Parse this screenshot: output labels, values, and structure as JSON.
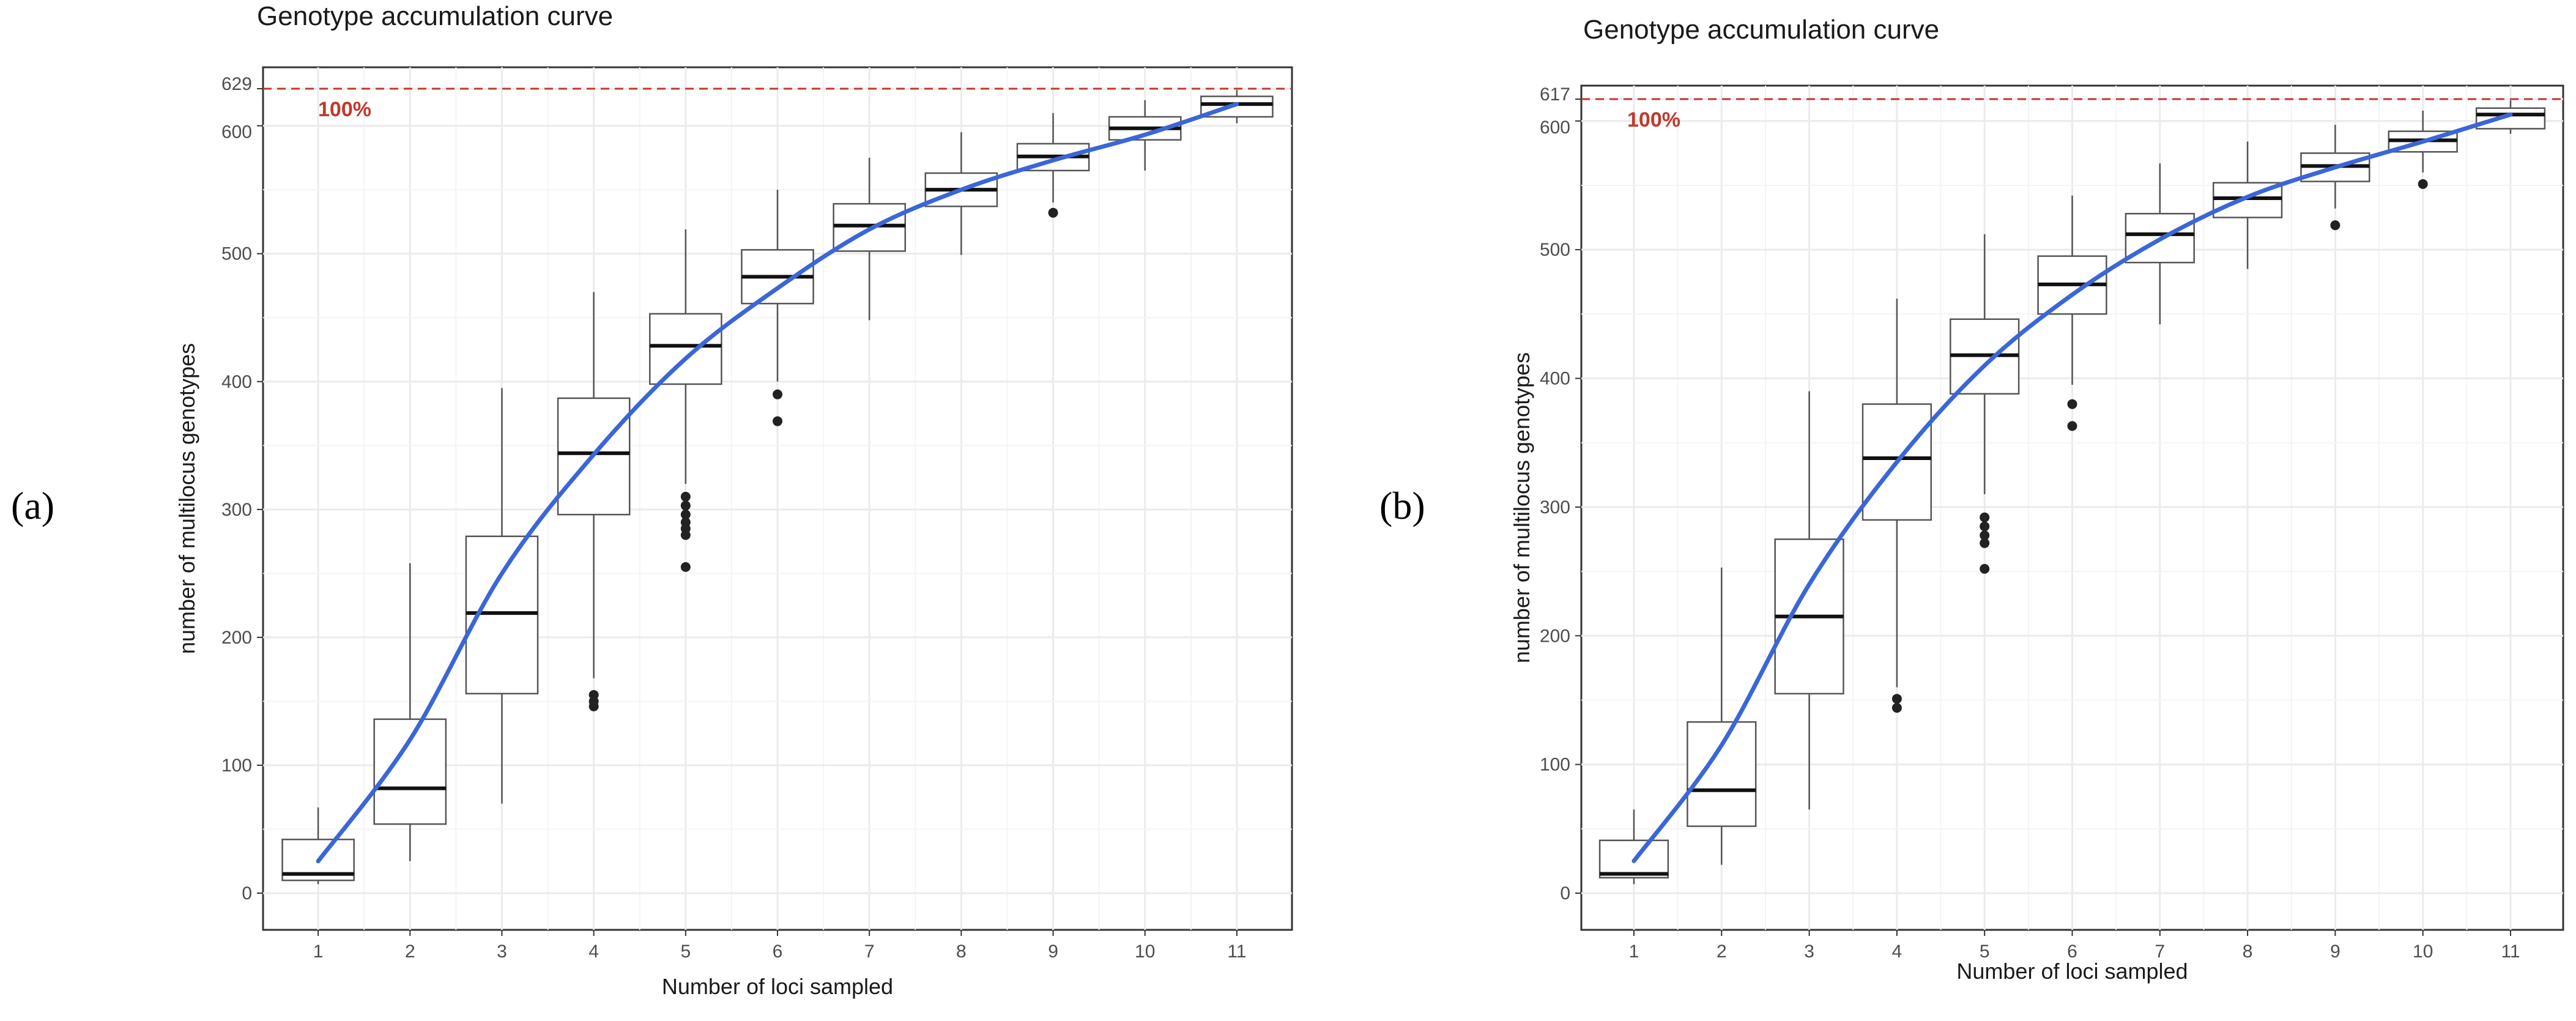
{
  "panels": [
    {
      "panel_label": "(a)",
      "chart_data": {
        "type": "boxplot",
        "title": "Genotype accumulation curve",
        "xlabel": "Number of loci sampled",
        "ylabel": "number of multilocus genotypes",
        "categories": [
          "1",
          "2",
          "3",
          "4",
          "5",
          "6",
          "7",
          "8",
          "9",
          "10",
          "11"
        ],
        "ylim": [
          0,
          629
        ],
        "yticks": [
          0,
          100,
          200,
          300,
          400,
          500,
          600,
          629
        ],
        "reference_line": {
          "value": 629,
          "label": "100%",
          "color": "#c0392b"
        },
        "boxes": [
          {
            "x": "1",
            "whisker_low": 7,
            "q1": 10,
            "median": 15,
            "q3": 42,
            "whisker_high": 67,
            "outliers": []
          },
          {
            "x": "2",
            "whisker_low": 25,
            "q1": 54,
            "median": 82,
            "q3": 136,
            "whisker_high": 258,
            "outliers": []
          },
          {
            "x": "3",
            "whisker_low": 70,
            "q1": 156,
            "median": 219,
            "q3": 279,
            "whisker_high": 395,
            "outliers": []
          },
          {
            "x": "4",
            "whisker_low": 168,
            "q1": 296,
            "median": 344,
            "q3": 387,
            "whisker_high": 470,
            "outliers": [
              146,
              150,
              155
            ]
          },
          {
            "x": "5",
            "whisker_low": 320,
            "q1": 398,
            "median": 428,
            "q3": 453,
            "whisker_high": 519,
            "outliers": [
              255,
              280,
              285,
              290,
              296,
              303,
              310
            ]
          },
          {
            "x": "6",
            "whisker_low": 400,
            "q1": 461,
            "median": 482,
            "q3": 503,
            "whisker_high": 550,
            "outliers": [
              369,
              390
            ]
          },
          {
            "x": "7",
            "whisker_low": 448,
            "q1": 502,
            "median": 522,
            "q3": 539,
            "whisker_high": 575,
            "outliers": []
          },
          {
            "x": "8",
            "whisker_low": 499,
            "q1": 537,
            "median": 550,
            "q3": 563,
            "whisker_high": 595,
            "outliers": []
          },
          {
            "x": "9",
            "whisker_low": 540,
            "q1": 565,
            "median": 576,
            "q3": 586,
            "whisker_high": 610,
            "outliers": [
              532
            ]
          },
          {
            "x": "10",
            "whisker_low": 565,
            "q1": 589,
            "median": 598,
            "q3": 607,
            "whisker_high": 620,
            "outliers": []
          },
          {
            "x": "11",
            "whisker_low": 602,
            "q1": 607,
            "median": 617,
            "q3": 623,
            "whisker_high": 628,
            "outliers": []
          }
        ],
        "trend_line": {
          "color": "#3a66d8",
          "x": [
            1,
            2,
            3,
            4,
            5,
            6,
            7,
            8,
            9,
            10,
            11
          ],
          "y": [
            25,
            120,
            250,
            343,
            418,
            473,
            519,
            550,
            573,
            593,
            617
          ]
        }
      }
    },
    {
      "panel_label": "(b)",
      "chart_data": {
        "type": "boxplot",
        "title": "Genotype accumulation curve",
        "xlabel": "Number of loci sampled",
        "ylabel": "number of multilocus genotypes",
        "categories": [
          "1",
          "2",
          "3",
          "4",
          "5",
          "6",
          "7",
          "8",
          "9",
          "10",
          "11"
        ],
        "ylim": [
          0,
          617
        ],
        "yticks": [
          0,
          100,
          200,
          300,
          400,
          500,
          600,
          617
        ],
        "reference_line": {
          "value": 617,
          "label": "100%",
          "color": "#c0392b"
        },
        "boxes": [
          {
            "x": "1",
            "whisker_low": 7,
            "q1": 12,
            "median": 15,
            "q3": 41,
            "whisker_high": 65,
            "outliers": []
          },
          {
            "x": "2",
            "whisker_low": 22,
            "q1": 52,
            "median": 80,
            "q3": 133,
            "whisker_high": 253,
            "outliers": []
          },
          {
            "x": "3",
            "whisker_low": 65,
            "q1": 155,
            "median": 215,
            "q3": 275,
            "whisker_high": 390,
            "outliers": []
          },
          {
            "x": "4",
            "whisker_low": 160,
            "q1": 290,
            "median": 338,
            "q3": 380,
            "whisker_high": 462,
            "outliers": [
              144,
              151
            ]
          },
          {
            "x": "5",
            "whisker_low": 310,
            "q1": 388,
            "median": 418,
            "q3": 446,
            "whisker_high": 512,
            "outliers": [
              252,
              272,
              278,
              285,
              292
            ]
          },
          {
            "x": "6",
            "whisker_low": 395,
            "q1": 450,
            "median": 473,
            "q3": 495,
            "whisker_high": 542,
            "outliers": [
              363,
              380
            ]
          },
          {
            "x": "7",
            "whisker_low": 442,
            "q1": 490,
            "median": 512,
            "q3": 528,
            "whisker_high": 567,
            "outliers": []
          },
          {
            "x": "8",
            "whisker_low": 485,
            "q1": 525,
            "median": 540,
            "q3": 552,
            "whisker_high": 584,
            "outliers": []
          },
          {
            "x": "9",
            "whisker_low": 532,
            "q1": 553,
            "median": 565,
            "q3": 575,
            "whisker_high": 597,
            "outliers": [
              519
            ]
          },
          {
            "x": "10",
            "whisker_low": 560,
            "q1": 576,
            "median": 585,
            "q3": 592,
            "whisker_high": 608,
            "outliers": [
              551
            ]
          },
          {
            "x": "11",
            "whisker_low": 590,
            "q1": 594,
            "median": 605,
            "q3": 610,
            "whisker_high": 616,
            "outliers": []
          }
        ],
        "trend_line": {
          "color": "#3a66d8",
          "x": [
            1,
            2,
            3,
            4,
            5,
            6,
            7,
            8,
            9,
            10,
            11
          ],
          "y": [
            25,
            115,
            240,
            335,
            410,
            465,
            508,
            541,
            564,
            584,
            605
          ]
        }
      }
    }
  ]
}
